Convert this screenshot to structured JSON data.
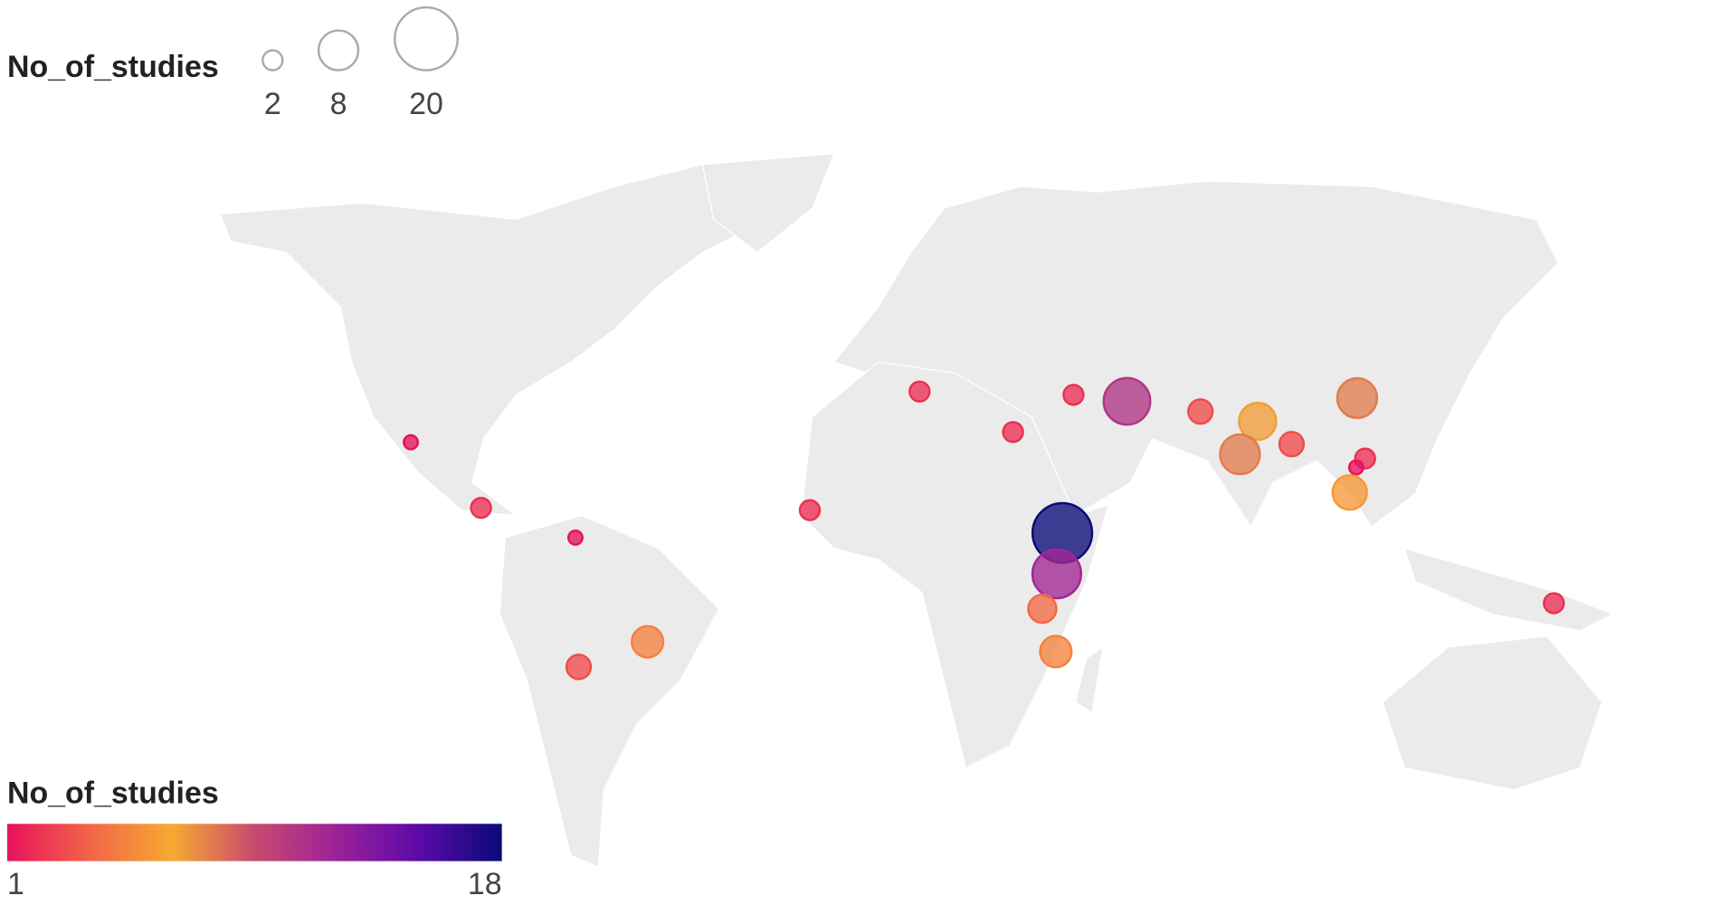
{
  "chart_data": {
    "type": "bubble-map",
    "size_legend": {
      "title": "No_of_studies",
      "values": [
        2,
        8,
        20
      ]
    },
    "color_legend": {
      "title": "No_of_studies",
      "min": 1,
      "max": 18,
      "colors": [
        "#e8115b",
        "#f26548",
        "#f7a930",
        "#c84a6f",
        "#9c2198",
        "#5a0aa8",
        "#0a0a78"
      ]
    },
    "lon": [
      -100,
      -84.9,
      -64.6,
      -49.1,
      -63.9,
      -14.2,
      9.4,
      29.5,
      42.5,
      54.0,
      40.1,
      38.9,
      35.8,
      38.7,
      69.8,
      82.1,
      78.3,
      89.4,
      103.5,
      105.2,
      103.3,
      101.9,
      145.8
    ],
    "lat": [
      28.5,
      14.4,
      8.0,
      -14.4,
      -19.8,
      13.9,
      39.4,
      30.7,
      38.7,
      37.3,
      9.0,
      0.2,
      -7.3,
      -16.5,
      35.1,
      33.0,
      25.9,
      28.1,
      38.0,
      25.0,
      23.1,
      17.7,
      -6.1
    ],
    "values": [
      1,
      2,
      1,
      5,
      3,
      2,
      2,
      2,
      2,
      11,
      18,
      12,
      4,
      5,
      3,
      7,
      8,
      3,
      8,
      2,
      1,
      6,
      2
    ]
  }
}
